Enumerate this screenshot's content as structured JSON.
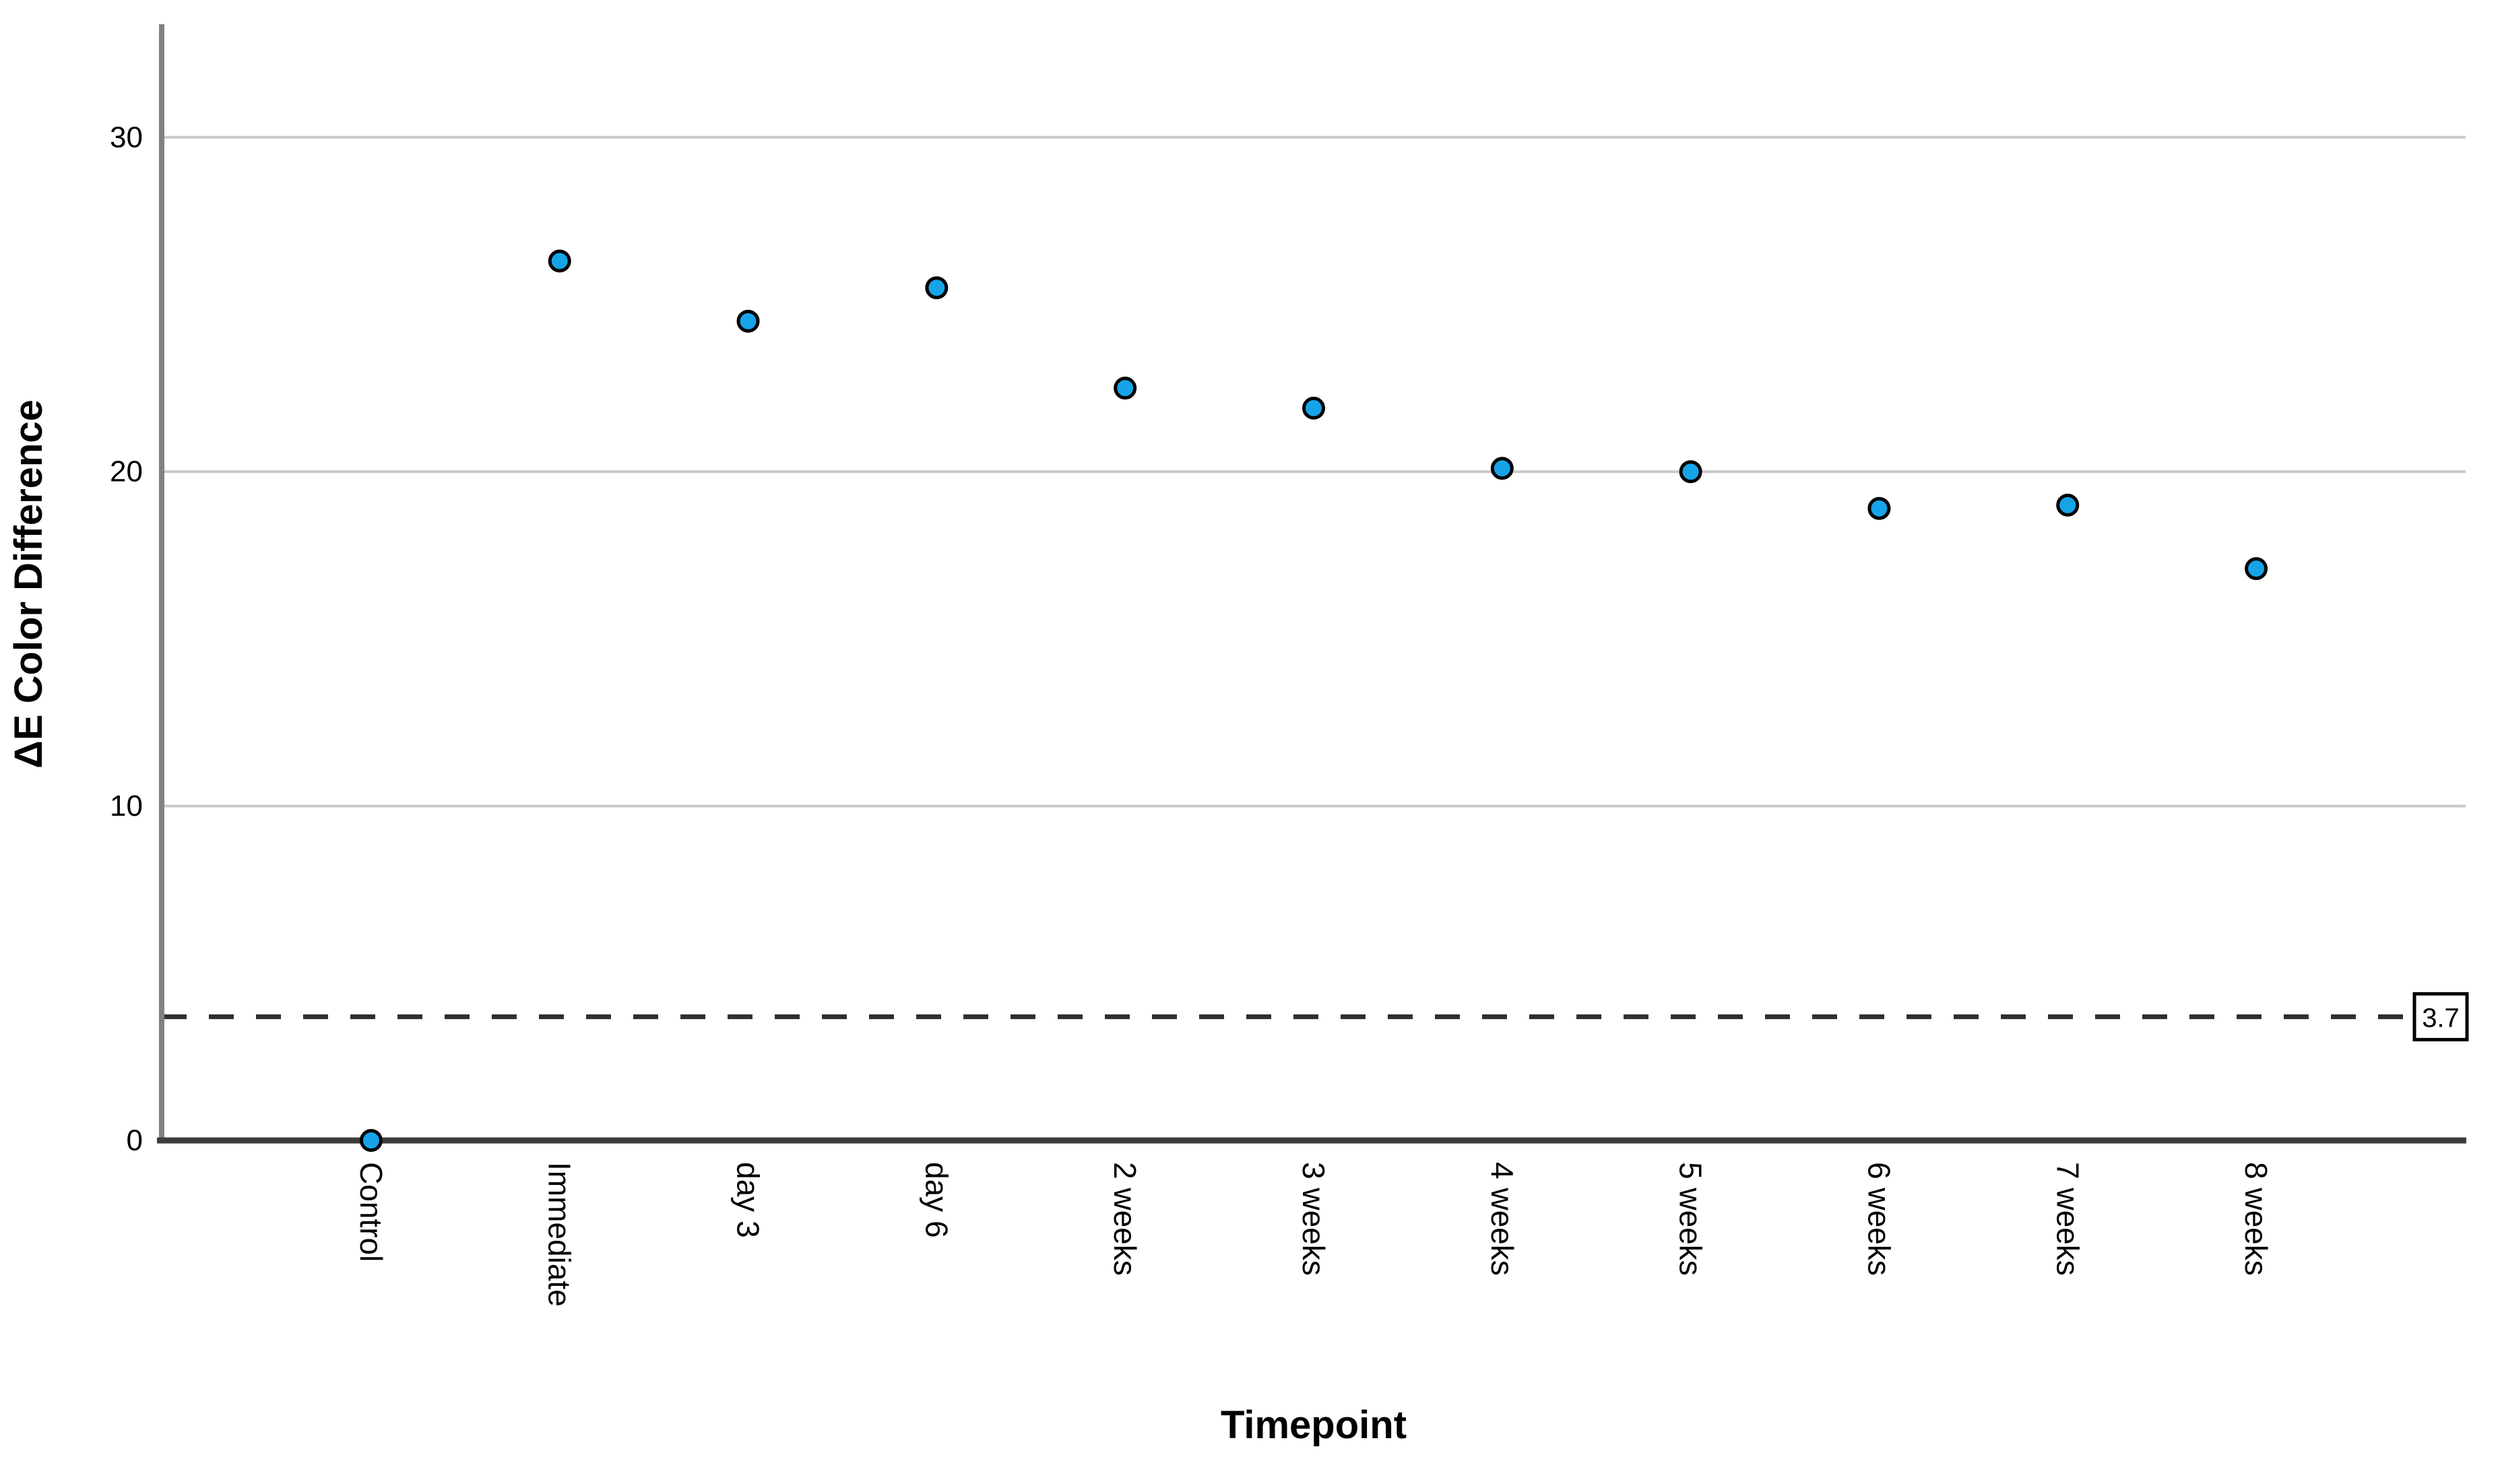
{
  "chart_data": {
    "type": "scatter",
    "title": "",
    "xlabel": "Timepoint",
    "ylabel": "ΔE Color Difference",
    "categories": [
      "Control",
      "Immediate",
      "day 3",
      "day 6",
      "2 weeks",
      "3 weeks",
      "4 weeks",
      "5 weeks",
      "6 weeks",
      "7 weeks",
      "8 weeks"
    ],
    "values": [
      0.0,
      26.3,
      24.5,
      25.5,
      22.5,
      21.9,
      20.1,
      20.0,
      18.9,
      19.0,
      17.1
    ],
    "y_ticks": [
      0,
      10,
      20,
      30
    ],
    "ylim": [
      0,
      33.3
    ],
    "grid": "horizontal-only",
    "legend": "none",
    "reference_line": {
      "value": 3.7,
      "label": "3.7",
      "style": "dashed"
    },
    "colors": {
      "marker_fill": "#16A3E8",
      "marker_stroke": "#000000",
      "gridline": "#c9c9c9",
      "y_axis": "#828282",
      "x_axis": "#3d3d3d",
      "dashed_line": "#2e2e2e",
      "background": "#ffffff"
    }
  }
}
